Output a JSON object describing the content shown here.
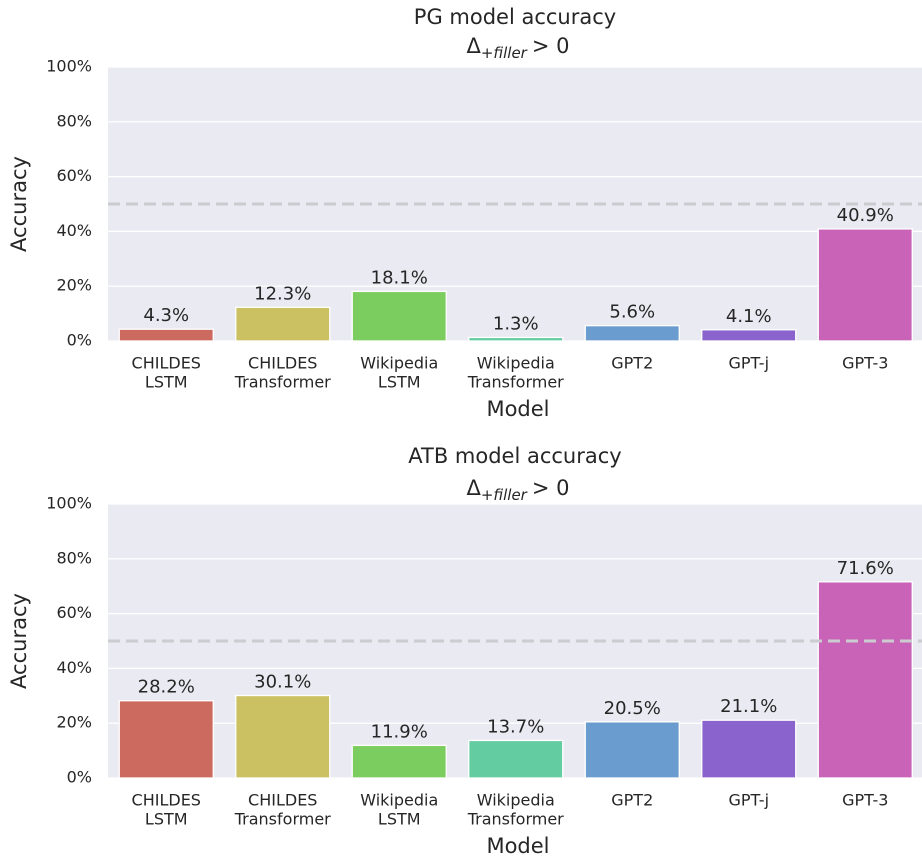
{
  "chart_data": [
    {
      "type": "bar",
      "title": "PG model accuracy",
      "subtitle_parts": [
        "Δ",
        "+filler",
        "> 0"
      ],
      "x_label": "Model",
      "y_label": "Accuracy",
      "categories": [
        [
          "CHILDES",
          "LSTM"
        ],
        [
          "CHILDES",
          "Transformer"
        ],
        [
          "Wikipedia",
          "LSTM"
        ],
        [
          "Wikipedia",
          "Transformer"
        ],
        [
          "GPT2"
        ],
        [
          "GPT-j"
        ],
        [
          "GPT-3"
        ]
      ],
      "values": [
        4.3,
        12.3,
        18.1,
        1.3,
        5.6,
        4.1,
        40.9
      ],
      "value_labels": [
        "4.3%",
        "12.3%",
        "18.1%",
        "1.3%",
        "5.6%",
        "4.1%",
        "40.9%"
      ],
      "colors": [
        "#cd6a5f",
        "#cbc163",
        "#7ccd5f",
        "#63cca0",
        "#6a9ccf",
        "#8b63cc",
        "#c963b8"
      ],
      "ylim": [
        0,
        100
      ],
      "yticks": [
        {
          "value": 0,
          "label": "0%"
        },
        {
          "value": 20,
          "label": "20%"
        },
        {
          "value": 40,
          "label": "40%"
        },
        {
          "value": 60,
          "label": "60%"
        },
        {
          "value": 80,
          "label": "80%"
        },
        {
          "value": 100,
          "label": "100%"
        }
      ],
      "reference_line": 50,
      "grid": true
    },
    {
      "type": "bar",
      "title": "ATB model accuracy",
      "subtitle_parts": [
        "Δ",
        "+filler",
        "> 0"
      ],
      "x_label": "Model",
      "y_label": "Accuracy",
      "categories": [
        [
          "CHILDES",
          "LSTM"
        ],
        [
          "CHILDES",
          "Transformer"
        ],
        [
          "Wikipedia",
          "LSTM"
        ],
        [
          "Wikipedia",
          "Transformer"
        ],
        [
          "GPT2"
        ],
        [
          "GPT-j"
        ],
        [
          "GPT-3"
        ]
      ],
      "values": [
        28.2,
        30.1,
        11.9,
        13.7,
        20.5,
        21.1,
        71.6
      ],
      "value_labels": [
        "28.2%",
        "30.1%",
        "11.9%",
        "13.7%",
        "20.5%",
        "21.1%",
        "71.6%"
      ],
      "colors": [
        "#cd6a5f",
        "#cbc163",
        "#7ccd5f",
        "#63cca0",
        "#6a9ccf",
        "#8b63cc",
        "#c963b8"
      ],
      "ylim": [
        0,
        100
      ],
      "yticks": [
        {
          "value": 0,
          "label": "0%"
        },
        {
          "value": 20,
          "label": "20%"
        },
        {
          "value": 40,
          "label": "40%"
        },
        {
          "value": 60,
          "label": "60%"
        },
        {
          "value": 80,
          "label": "80%"
        },
        {
          "value": 100,
          "label": "100%"
        }
      ],
      "reference_line": 50,
      "grid": true
    }
  ]
}
